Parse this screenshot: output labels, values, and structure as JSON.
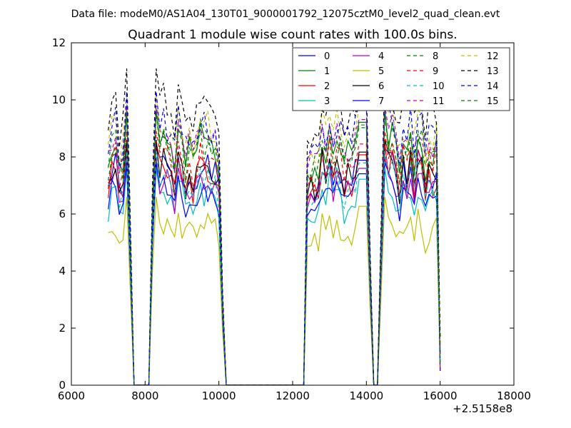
{
  "suptitle": "Data file: modeM0/AS1A04_130T01_9000001792_12075cztM0_level2_quad_clean.evt",
  "chart_data": {
    "type": "line",
    "title": "Quadrant 1 module wise count rates with 100.0s bins.",
    "xlabel": "",
    "ylabel": "",
    "xlim": [
      6000,
      18000
    ],
    "ylim": [
      0,
      12
    ],
    "x_offset_label": "+2.5158e8",
    "xticks": [
      6000,
      8000,
      10000,
      12000,
      14000,
      16000,
      18000
    ],
    "yticks": [
      0,
      2,
      4,
      6,
      8,
      10,
      12
    ],
    "grid": false,
    "legend_position": "top-right",
    "x_segments": {
      "seg1_start": 7000,
      "seg1_end": 7600,
      "gap1_end": 8100,
      "seg2_start": 8200,
      "seg2_end": 10100,
      "gap2_end": 12300,
      "seg3_start": 12400,
      "seg3_end": 14100,
      "gap3_end": 14300,
      "seg4_start": 14400,
      "seg4_end": 16000,
      "step": 100
    },
    "series": [
      {
        "name": "0",
        "color": "#0000ff",
        "dashed": false,
        "base": 7.3,
        "peak": 8.3,
        "seed": 1
      },
      {
        "name": "1",
        "color": "#008000",
        "dashed": false,
        "base": 8.2,
        "peak": 9.7,
        "seed": 2
      },
      {
        "name": "2",
        "color": "#ff0000",
        "dashed": false,
        "base": 7.2,
        "peak": 8.5,
        "seed": 3
      },
      {
        "name": "3",
        "color": "#00bfbf",
        "dashed": false,
        "base": 6.5,
        "peak": 7.6,
        "seed": 4
      },
      {
        "name": "4",
        "color": "#bf00bf",
        "dashed": false,
        "base": 6.9,
        "peak": 8.0,
        "seed": 5
      },
      {
        "name": "5",
        "color": "#bfbf00",
        "dashed": false,
        "base": 5.4,
        "peak": 6.6,
        "seed": 6
      },
      {
        "name": "6",
        "color": "#000000",
        "dashed": false,
        "base": 7.4,
        "peak": 8.6,
        "seed": 7
      },
      {
        "name": "7",
        "color": "#0000ff",
        "dashed": false,
        "base": 6.6,
        "peak": 7.8,
        "seed": 8
      },
      {
        "name": "8",
        "color": "#008000",
        "dashed": true,
        "base": 8.3,
        "peak": 9.6,
        "seed": 9
      },
      {
        "name": "9",
        "color": "#ff0000",
        "dashed": true,
        "base": 7.7,
        "peak": 8.9,
        "seed": 10
      },
      {
        "name": "10",
        "color": "#00bfbf",
        "dashed": true,
        "base": 7.0,
        "peak": 8.2,
        "seed": 11
      },
      {
        "name": "11",
        "color": "#bf00bf",
        "dashed": true,
        "base": 8.4,
        "peak": 9.8,
        "seed": 12
      },
      {
        "name": "12",
        "color": "#bfbf00",
        "dashed": true,
        "base": 8.8,
        "peak": 10.2,
        "seed": 13
      },
      {
        "name": "13",
        "color": "#000000",
        "dashed": true,
        "base": 9.5,
        "peak": 11.1,
        "seed": 14
      },
      {
        "name": "14",
        "color": "#0000ff",
        "dashed": true,
        "base": 8.8,
        "peak": 10.3,
        "seed": 15
      },
      {
        "name": "15",
        "color": "#008000",
        "dashed": true,
        "base": 8.0,
        "peak": 9.5,
        "seed": 16
      }
    ]
  }
}
